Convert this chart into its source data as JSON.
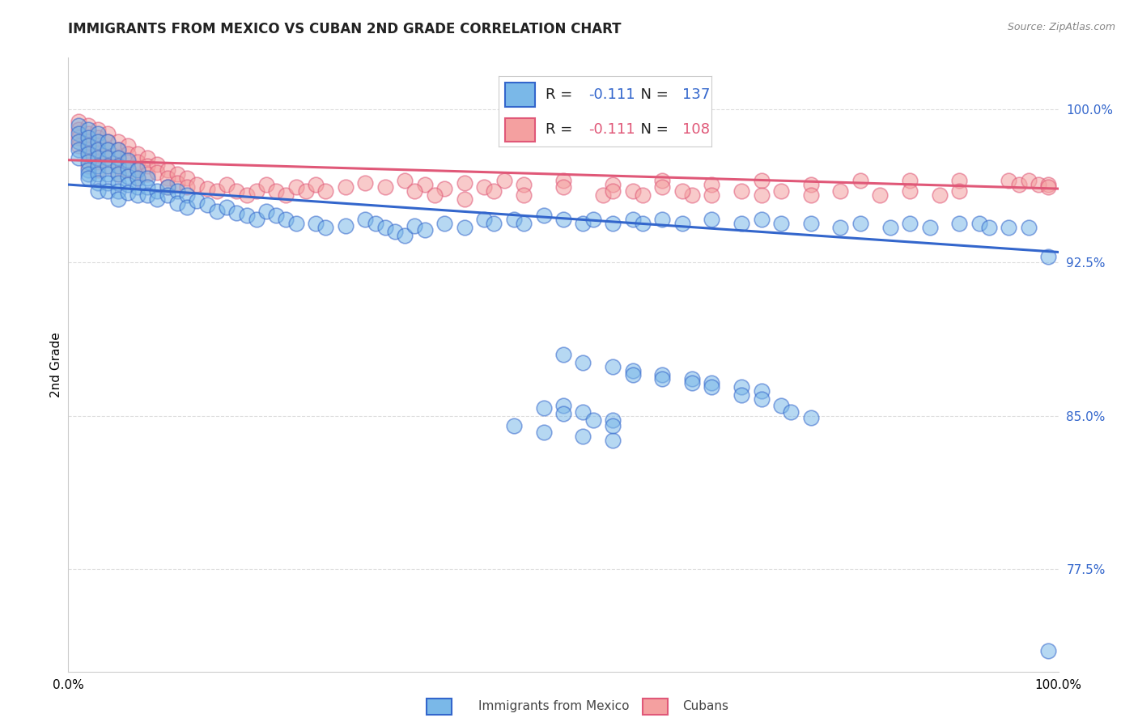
{
  "title": "IMMIGRANTS FROM MEXICO VS CUBAN 2ND GRADE CORRELATION CHART",
  "source_text": "Source: ZipAtlas.com",
  "ylabel": "2nd Grade",
  "legend_blue_r": "-0.111",
  "legend_blue_n": "137",
  "legend_pink_r": "-0.111",
  "legend_pink_n": "108",
  "legend_blue_label": "Immigrants from Mexico",
  "legend_pink_label": "Cubans",
  "blue_color": "#7ab8e8",
  "pink_color": "#f4a0a0",
  "blue_line_color": "#3366cc",
  "pink_line_color": "#e05878",
  "ytick_color": "#3366cc",
  "xlim": [
    0.0,
    1.0
  ],
  "ylim": [
    0.725,
    1.025
  ],
  "yticks": [
    0.775,
    0.85,
    0.925,
    1.0
  ],
  "ytick_labels": [
    "77.5%",
    "85.0%",
    "92.5%",
    "100.0%"
  ],
  "background_color": "#ffffff",
  "grid_color": "#dddddd",
  "title_fontsize": 12,
  "source_fontsize": 9,
  "blue_line_y_start": 0.963,
  "blue_line_y_end": 0.93,
  "pink_line_y_start": 0.975,
  "pink_line_y_end": 0.961,
  "blue_scatter_x": [
    0.01,
    0.01,
    0.01,
    0.01,
    0.01,
    0.02,
    0.02,
    0.02,
    0.02,
    0.02,
    0.02,
    0.02,
    0.02,
    0.03,
    0.03,
    0.03,
    0.03,
    0.03,
    0.03,
    0.03,
    0.03,
    0.04,
    0.04,
    0.04,
    0.04,
    0.04,
    0.04,
    0.04,
    0.05,
    0.05,
    0.05,
    0.05,
    0.05,
    0.05,
    0.05,
    0.06,
    0.06,
    0.06,
    0.06,
    0.06,
    0.07,
    0.07,
    0.07,
    0.07,
    0.08,
    0.08,
    0.08,
    0.09,
    0.09,
    0.1,
    0.1,
    0.11,
    0.11,
    0.12,
    0.12,
    0.13,
    0.14,
    0.15,
    0.16,
    0.17,
    0.18,
    0.19,
    0.2,
    0.21,
    0.22,
    0.23,
    0.25,
    0.26,
    0.28,
    0.3,
    0.31,
    0.32,
    0.33,
    0.34,
    0.35,
    0.36,
    0.38,
    0.4,
    0.42,
    0.43,
    0.45,
    0.46,
    0.48,
    0.5,
    0.52,
    0.53,
    0.55,
    0.57,
    0.58,
    0.6,
    0.62,
    0.65,
    0.68,
    0.7,
    0.72,
    0.75,
    0.78,
    0.8,
    0.83,
    0.85,
    0.87,
    0.9,
    0.92,
    0.93,
    0.95,
    0.97,
    0.99,
    0.5,
    0.52,
    0.55,
    0.57,
    0.6,
    0.63,
    0.65,
    0.68,
    0.7,
    0.5,
    0.52,
    0.55,
    0.45,
    0.48,
    0.52,
    0.55,
    0.48,
    0.5,
    0.53,
    0.55,
    0.57,
    0.6,
    0.63,
    0.65,
    0.68,
    0.7,
    0.72,
    0.73,
    0.75,
    0.99
  ],
  "blue_scatter_y": [
    0.992,
    0.988,
    0.984,
    0.98,
    0.976,
    0.99,
    0.986,
    0.982,
    0.978,
    0.974,
    0.97,
    0.968,
    0.966,
    0.988,
    0.984,
    0.98,
    0.976,
    0.972,
    0.968,
    0.964,
    0.96,
    0.984,
    0.98,
    0.976,
    0.972,
    0.968,
    0.964,
    0.96,
    0.98,
    0.976,
    0.972,
    0.968,
    0.964,
    0.96,
    0.956,
    0.975,
    0.971,
    0.967,
    0.963,
    0.959,
    0.97,
    0.966,
    0.962,
    0.958,
    0.966,
    0.962,
    0.958,
    0.96,
    0.956,
    0.962,
    0.958,
    0.96,
    0.954,
    0.958,
    0.952,
    0.955,
    0.953,
    0.95,
    0.952,
    0.949,
    0.948,
    0.946,
    0.95,
    0.948,
    0.946,
    0.944,
    0.944,
    0.942,
    0.943,
    0.946,
    0.944,
    0.942,
    0.94,
    0.938,
    0.943,
    0.941,
    0.944,
    0.942,
    0.946,
    0.944,
    0.946,
    0.944,
    0.948,
    0.946,
    0.944,
    0.946,
    0.944,
    0.946,
    0.944,
    0.946,
    0.944,
    0.946,
    0.944,
    0.946,
    0.944,
    0.944,
    0.942,
    0.944,
    0.942,
    0.944,
    0.942,
    0.944,
    0.944,
    0.942,
    0.942,
    0.942,
    0.928,
    0.88,
    0.876,
    0.874,
    0.872,
    0.87,
    0.868,
    0.866,
    0.864,
    0.862,
    0.855,
    0.852,
    0.848,
    0.845,
    0.842,
    0.84,
    0.838,
    0.854,
    0.851,
    0.848,
    0.845,
    0.87,
    0.868,
    0.866,
    0.864,
    0.86,
    0.858,
    0.855,
    0.852,
    0.849,
    0.735
  ],
  "pink_scatter_x": [
    0.01,
    0.01,
    0.01,
    0.01,
    0.02,
    0.02,
    0.02,
    0.02,
    0.02,
    0.02,
    0.03,
    0.03,
    0.03,
    0.03,
    0.03,
    0.03,
    0.04,
    0.04,
    0.04,
    0.04,
    0.04,
    0.05,
    0.05,
    0.05,
    0.05,
    0.05,
    0.06,
    0.06,
    0.06,
    0.06,
    0.07,
    0.07,
    0.07,
    0.07,
    0.08,
    0.08,
    0.08,
    0.09,
    0.09,
    0.1,
    0.1,
    0.1,
    0.11,
    0.11,
    0.12,
    0.12,
    0.13,
    0.14,
    0.15,
    0.16,
    0.17,
    0.18,
    0.19,
    0.2,
    0.21,
    0.22,
    0.23,
    0.24,
    0.25,
    0.26,
    0.28,
    0.3,
    0.32,
    0.34,
    0.36,
    0.38,
    0.4,
    0.42,
    0.44,
    0.46,
    0.5,
    0.55,
    0.6,
    0.65,
    0.7,
    0.75,
    0.8,
    0.85,
    0.9,
    0.95,
    0.96,
    0.97,
    0.98,
    0.99,
    0.35,
    0.37,
    0.4,
    0.43,
    0.46,
    0.5,
    0.54,
    0.57,
    0.6,
    0.63,
    0.55,
    0.58,
    0.62,
    0.65,
    0.68,
    0.7,
    0.72,
    0.75,
    0.78,
    0.82,
    0.85,
    0.88,
    0.9,
    0.99
  ],
  "pink_scatter_y": [
    0.994,
    0.99,
    0.986,
    0.982,
    0.992,
    0.988,
    0.984,
    0.98,
    0.976,
    0.972,
    0.99,
    0.986,
    0.982,
    0.978,
    0.974,
    0.97,
    0.988,
    0.984,
    0.98,
    0.976,
    0.972,
    0.984,
    0.98,
    0.976,
    0.972,
    0.968,
    0.982,
    0.978,
    0.974,
    0.97,
    0.978,
    0.974,
    0.97,
    0.966,
    0.976,
    0.972,
    0.968,
    0.973,
    0.969,
    0.97,
    0.966,
    0.962,
    0.968,
    0.964,
    0.966,
    0.962,
    0.963,
    0.961,
    0.96,
    0.963,
    0.96,
    0.958,
    0.96,
    0.963,
    0.96,
    0.958,
    0.962,
    0.96,
    0.963,
    0.96,
    0.962,
    0.964,
    0.962,
    0.965,
    0.963,
    0.961,
    0.964,
    0.962,
    0.965,
    0.963,
    0.965,
    0.963,
    0.965,
    0.963,
    0.965,
    0.963,
    0.965,
    0.965,
    0.965,
    0.965,
    0.963,
    0.965,
    0.963,
    0.963,
    0.96,
    0.958,
    0.956,
    0.96,
    0.958,
    0.962,
    0.958,
    0.96,
    0.962,
    0.958,
    0.96,
    0.958,
    0.96,
    0.958,
    0.96,
    0.958,
    0.96,
    0.958,
    0.96,
    0.958,
    0.96,
    0.958,
    0.96,
    0.962
  ]
}
